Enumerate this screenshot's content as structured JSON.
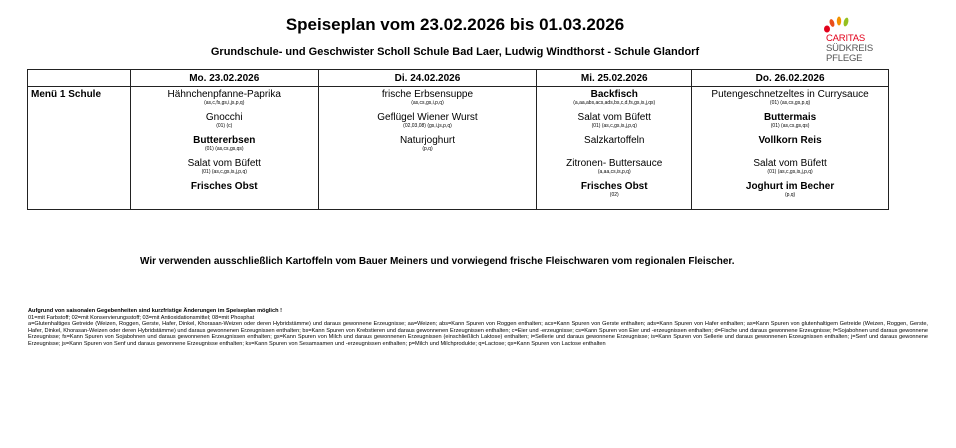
{
  "header": {
    "title": "Speiseplan vom 23.02.2026 bis 01.03.2026",
    "subtitle": "Grundschule- und Geschwister Scholl Schule Bad Laer, Ludwig Windthorst - Schule Glandorf"
  },
  "logo": {
    "lines": [
      "CARITAS",
      "SÜDKREIS",
      "PFLEGE"
    ],
    "colors": [
      "#e2001a",
      "#f39200",
      "#95c11f",
      "#e94e1b"
    ]
  },
  "table": {
    "row_label": "Menü 1 Schule",
    "days": [
      {
        "date": "Mo. 23.02.2026",
        "dishes": [
          {
            "name": "Hähnchenpfanne-Paprika",
            "allergens": "(as,c,fs,gs,i,js,p,q)"
          },
          {
            "name": "Gnocchi",
            "allergens": "(01) (c)"
          },
          {
            "name": "Buttererbsen",
            "allergens": "(01) (as,cs,gs,qs)"
          },
          {
            "name": "Salat vom Büfett",
            "allergens": "(01) (as,c,gs,is,j,p,q)"
          },
          {
            "name": "Frisches Obst",
            "allergens": ""
          }
        ]
      },
      {
        "date": "Di. 24.02.2026",
        "dishes": [
          {
            "name": "frische Erbsensuppe",
            "allergens": "(as,cs,gs,i,p,q)"
          },
          {
            "name": "Geflügel Wiener Wurst",
            "allergens": "(02,03,08) (gs,i,js,p,q)"
          },
          {
            "name": "Naturjoghurt",
            "allergens": "(p,q)"
          }
        ]
      },
      {
        "date": "Mi. 25.02.2026",
        "dishes": [
          {
            "name": "Backfisch",
            "allergens": "(a,aa,abs,acs,ads,bs,c,d,fs,gs,is,j,qs)"
          },
          {
            "name": "Salat vom Büfett",
            "allergens": "(01) (as,c,gs,is,j,p,q)"
          },
          {
            "name": "Salzkartoffeln",
            "allergens": ""
          },
          {
            "name": "Zitronen- Buttersauce",
            "allergens": "(a,aa,cs,is,p,q)"
          },
          {
            "name": "Frisches Obst",
            "allergens": "(02)"
          }
        ]
      },
      {
        "date": "Do. 26.02.2026",
        "dishes": [
          {
            "name": "Putengeschnetzeltes in Currysauce",
            "allergens": "(01) (as,cs,gs,p,q)"
          },
          {
            "name": "Buttermais",
            "allergens": "(01) (as,cs,gs,qs)"
          },
          {
            "name": "Vollkorn Reis",
            "allergens": ""
          },
          {
            "name": "Salat vom Büfett",
            "allergens": "(01) (as,c,gs,is,j,p,q)"
          },
          {
            "name": "Joghurt im Becher",
            "allergens": "(p,q)"
          }
        ]
      }
    ]
  },
  "notice": "Wir verwenden ausschließlich Kartoffeln vom Bauer Meiners und vorwiegend frische Fleischwaren vom regionalen Fleischer.",
  "footer": {
    "heading": "Aufgrund von saisonalen Gegebenheiten sind kurzfristige Änderungen im Speiseplan möglich !",
    "additives": "01=mit Farbstoff; 02=mit Konservierungsstoff; 03=mit Antioxidationsmittel; 08=mit Phosphat",
    "allergens": "a=Glutenhaltiges Getreide (Weizen, Roggen, Gerste, Hafer, Dinkel, Khorasan-Weizen oder deren Hybridstämme) und daraus gewonnene Erzeugnisse; aa=Weizen; abs=Kann Spuren von Roggen enthalten; acs=Kann Spuren von Gerste enthalten; ads=Kann Spuren von Hafer enthalten; as=Kann Spuren von glutenhaltigem Getreide (Weizen, Roggen, Gerste, Hafer, Dinkel, Khorasan-Weizen oder deren Hybridstämme) und daraus gewonnenen Erzeugnissen enthalten; bs=Kann Spuren von Krebstieren und daraus gewonnenen Erzeugnissen enthalten; c=Eier und -erzeugnisse; cs=Kann Spuren von Eier und -erzeugnissen enthalten; d=Fische und daraus gewonnene Erzeugnisse; f=Sojabohnen und daraus gewonnene Erzeugnisse; fs=Kann Spuren von Sojabohnen und daraus gewonnenen Erzeugnissen enthalten; gs=Kann Spuren von Milch und daraus gewonnenen Erzeugnissen (einschließlich Laktose) enthalten; i=Sellerie und daraus gewonnene Erzeugnisse; is=Kann Spuren von Sellerie und daraus gewonnenen Erzeugnissen enthalten; j=Senf und daraus gewonnene Erzeugnisse; js=Kann Spuren von Senf und daraus gewonnene Erzeugnisse enthalten; ks=Kann Spuren von Sesamsamen und -erzeugnissen enthalten; p=Milch und Milchprodukte; q=Lactose; qs=Kann Spuren von Lactose enthalten"
  }
}
